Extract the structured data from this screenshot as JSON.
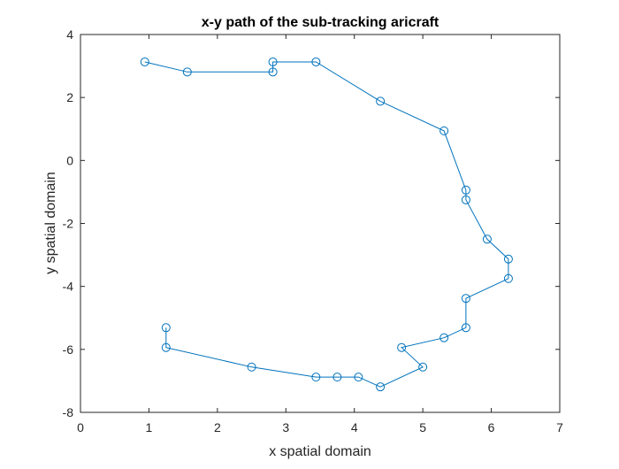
{
  "chart_data": {
    "type": "line",
    "title": "x-y path of the sub-tracking aricraft",
    "xlabel": "x spatial domain",
    "ylabel": "y spatial domain",
    "xlim": [
      0,
      7
    ],
    "ylim": [
      -8,
      4
    ],
    "xticks": [
      0,
      1,
      2,
      3,
      4,
      5,
      6,
      7
    ],
    "yticks": [
      -8,
      -6,
      -4,
      -2,
      0,
      2,
      4
    ],
    "xtick_labels": [
      "0",
      "1",
      "2",
      "3",
      "4",
      "5",
      "6",
      "7"
    ],
    "ytick_labels": [
      "-8",
      "-6",
      "-4",
      "-2",
      "0",
      "2",
      "4"
    ],
    "grid": false,
    "marker": "circle",
    "series": [
      {
        "color": "#0072BD",
        "x": [
          0.94,
          1.56,
          2.81,
          2.81,
          3.44,
          4.38,
          5.31,
          5.63,
          5.63,
          5.94,
          6.25,
          6.25,
          5.63,
          5.63,
          5.31,
          4.69,
          5.0,
          4.38,
          4.06,
          3.75,
          3.44,
          2.5,
          1.25,
          1.25
        ],
        "y": [
          3.13,
          2.81,
          2.81,
          3.13,
          3.13,
          1.88,
          0.94,
          -0.94,
          -1.25,
          -2.5,
          -3.13,
          -3.75,
          -4.38,
          -5.31,
          -5.63,
          -5.94,
          -6.56,
          -7.19,
          -6.88,
          -6.88,
          -6.88,
          -6.56,
          -5.94,
          -5.31
        ]
      }
    ]
  }
}
